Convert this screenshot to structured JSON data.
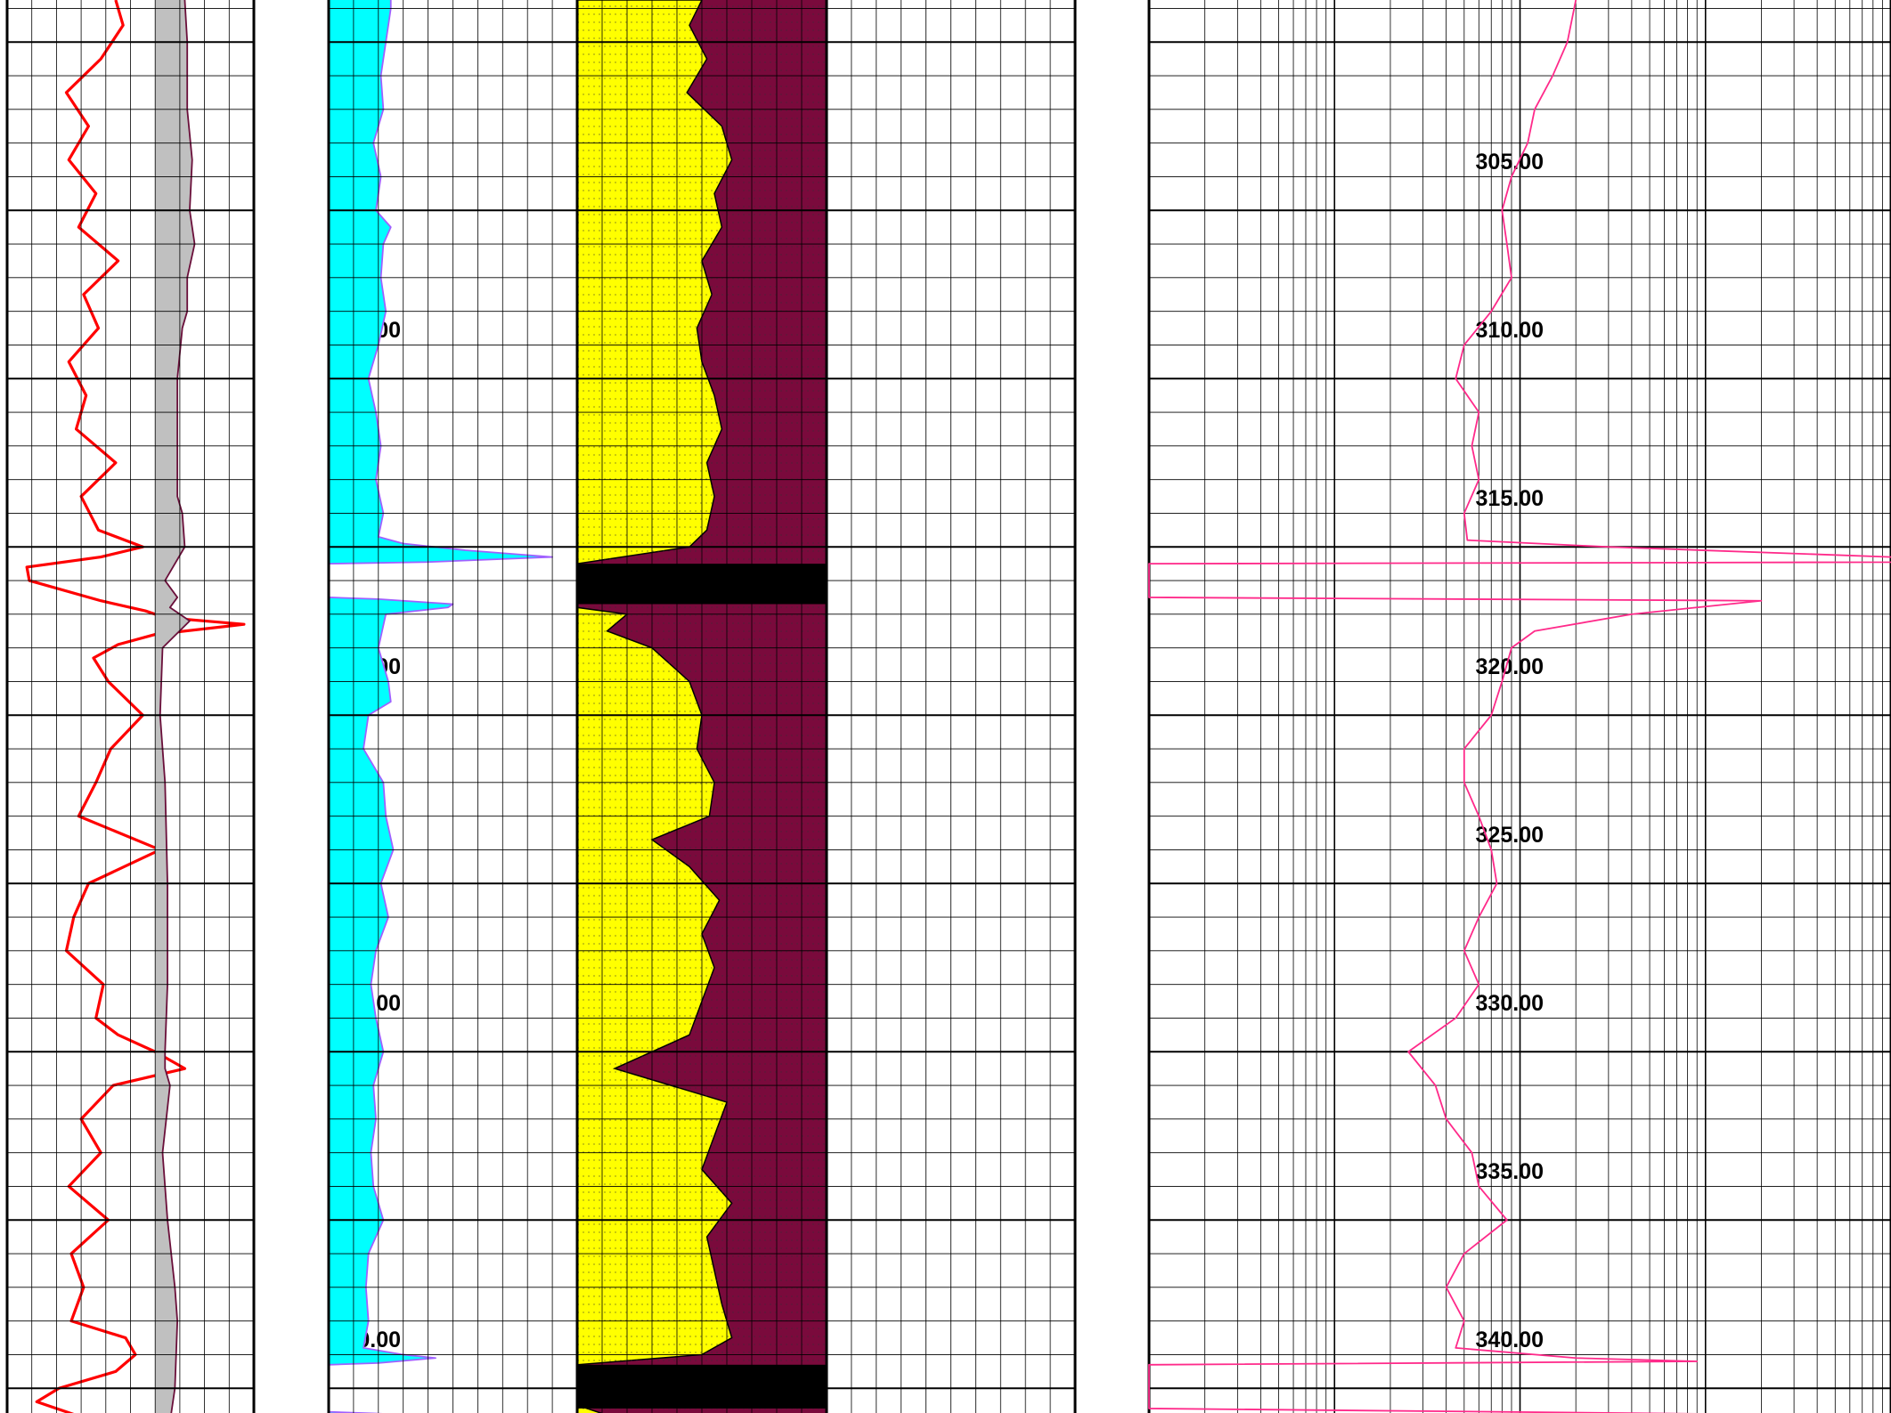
{
  "chart_data": {
    "type": "line",
    "title": "",
    "orientation": "vertical depth log",
    "depth_axis": {
      "range": [
        298.75,
        342.5
      ],
      "tick_labels": [
        "305.00",
        "310.00",
        "315.00",
        "320.00",
        "325.00",
        "330.00",
        "335.00",
        "340.00"
      ],
      "tick_values": [
        305,
        310,
        315,
        320,
        325,
        330,
        335,
        340
      ]
    },
    "tracks": [
      {
        "name": "track-1",
        "x_range": [
          0,
          10
        ],
        "grid": "linear",
        "series": [
          {
            "color": "#ff0000",
            "depth": [
              298.75,
              299.5,
              300.5,
              301.5,
              302.5,
              303.5,
              304.5,
              305.5,
              306.5,
              307.5,
              308.5,
              309.5,
              310.5,
              311.5,
              312.5,
              313.5,
              314.5,
              315.0,
              315.3,
              315.6,
              316.0,
              316.6,
              316.9,
              317.1,
              317.3,
              317.6,
              317.9,
              318.3,
              319.0,
              320.0,
              321.0,
              322.0,
              323.0,
              324.0,
              325.0,
              326.0,
              327.0,
              328.0,
              329.0,
              329.5,
              330.0,
              330.5,
              331.0,
              332.0,
              333.0,
              334.0,
              335.0,
              336.0,
              337.0,
              338.0,
              338.5,
              339.0,
              339.5,
              340.0,
              340.4,
              340.8,
              341.3,
              341.8,
              342.5
            ],
            "value": [
              4.4,
              4.7,
              3.8,
              2.4,
              3.3,
              2.5,
              3.6,
              2.9,
              4.5,
              3.1,
              3.7,
              2.5,
              3.2,
              2.8,
              4.4,
              3.0,
              3.7,
              5.5,
              3.8,
              0.8,
              0.9,
              3.8,
              5.6,
              6.4,
              9.6,
              6.0,
              4.5,
              3.5,
              4.1,
              5.5,
              4.2,
              3.6,
              2.9,
              6.2,
              3.3,
              2.7,
              2.4,
              3.9,
              3.6,
              4.5,
              6.0,
              7.2,
              4.3,
              3.0,
              3.8,
              2.5,
              4.1,
              2.6,
              3.1,
              2.6,
              4.8,
              5.2,
              4.4,
              2.1,
              1.2,
              2.8,
              4.8,
              5.3,
              4.2
            ]
          },
          {
            "color": "#6a0f3a",
            "fill": "#c0c0c0",
            "baseline": 6.0,
            "depth": [
              298.75,
              300,
              302,
              303.5,
              305,
              306,
              307,
              308,
              308.5,
              310,
              312,
              313.5,
              314,
              315,
              316,
              316.5,
              316.8,
              317.2,
              318,
              320,
              322,
              325,
              328,
              330,
              330.5,
              331,
              333,
              335,
              337,
              338,
              340,
              341,
              342.5
            ],
            "value": [
              7.2,
              7.3,
              7.3,
              7.5,
              7.4,
              7.6,
              7.3,
              7.3,
              7.1,
              6.9,
              6.9,
              6.9,
              7.1,
              7.2,
              6.4,
              6.9,
              6.6,
              7.4,
              6.3,
              6.2,
              6.4,
              6.5,
              6.5,
              6.4,
              6.4,
              6.6,
              6.3,
              6.5,
              6.8,
              6.9,
              6.8,
              6.6,
              6.6
            ]
          }
        ]
      },
      {
        "name": "track-2",
        "x_range": [
          0,
          10
        ],
        "grid": "linear",
        "series": [
          {
            "color": "#a060ff",
            "fill": "#00ffff",
            "baseline": 0,
            "depth": [
              298.75,
              299,
              300,
              301,
              302,
              303,
              304,
              305,
              305.5,
              306,
              307,
              308,
              309,
              310,
              311,
              312,
              313,
              314,
              314.7,
              314.9,
              315.1,
              315.3,
              315.45,
              315.5,
              316.5,
              316.55,
              316.7,
              316.8,
              317,
              318,
              319,
              319.6,
              320,
              321,
              322,
              323,
              324,
              325,
              326,
              327,
              328,
              329,
              330,
              331,
              332,
              333,
              334,
              335,
              336,
              337,
              338,
              338.8,
              339.0,
              339.1,
              339.25,
              339.3,
              340.7,
              340.75,
              340.9,
              341.0,
              341.2,
              342.5
            ],
            "value": [
              2.5,
              2.5,
              2.3,
              2.1,
              2.2,
              1.8,
              2.1,
              1.9,
              2.5,
              2.2,
              2.1,
              2.3,
              2.0,
              1.6,
              1.9,
              2.1,
              1.9,
              2.2,
              2.0,
              3.0,
              5.5,
              9.0,
              4.0,
              0,
              0,
              2.0,
              5.0,
              4.8,
              2.3,
              2.0,
              2.4,
              2.5,
              1.6,
              1.4,
              2.2,
              2.3,
              2.6,
              2.1,
              2.4,
              1.9,
              1.7,
              1.9,
              2.2,
              1.8,
              1.9,
              1.7,
              1.8,
              2.2,
              1.6,
              1.5,
              1.6,
              1.4,
              3.0,
              4.3,
              2.0,
              0,
              0,
              2.0,
              5.0,
              8.1,
              2.2,
              1.3
            ]
          }
        ]
      },
      {
        "name": "track-3",
        "x_range": [
          0,
          1
        ],
        "grid": "linear",
        "series": [
          {
            "type": "area-split",
            "left_fill": "#ffff00",
            "right_fill": "#7a0a3c",
            "depth": [
              298.75,
              299.5,
              300.5,
              301.5,
              302.5,
              303.5,
              304.5,
              305.5,
              306.5,
              307.5,
              308.5,
              309.5,
              310.5,
              311.5,
              312.5,
              313.5,
              314.5,
              315.0,
              315.5,
              316.8,
              317.0,
              317.5,
              318.0,
              319.0,
              320.0,
              321.0,
              322.0,
              323.0,
              323.7,
              324.5,
              325.5,
              326.5,
              327.5,
              328.5,
              329.5,
              330.5,
              331.5,
              332.5,
              333.5,
              334.5,
              335.5,
              336.5,
              337.5,
              338.5,
              339.0,
              339.3,
              340.5,
              341.0,
              342.0,
              342.5
            ],
            "value": [
              0.5,
              0.45,
              0.52,
              0.44,
              0.58,
              0.62,
              0.55,
              0.58,
              0.5,
              0.54,
              0.48,
              0.5,
              0.55,
              0.58,
              0.52,
              0.55,
              0.52,
              0.45,
              0.0,
              0.0,
              0.2,
              0.12,
              0.3,
              0.45,
              0.5,
              0.48,
              0.55,
              0.53,
              0.3,
              0.45,
              0.57,
              0.5,
              0.55,
              0.5,
              0.45,
              0.15,
              0.6,
              0.55,
              0.5,
              0.62,
              0.52,
              0.55,
              0.58,
              0.62,
              0.5,
              0.0,
              0.0,
              0.2,
              0.4,
              0.35
            ]
          },
          {
            "type": "lithology-band",
            "fill": "#000000",
            "depth_ranges": [
              [
                315.5,
                316.7
              ],
              [
                339.3,
                340.6
              ]
            ]
          }
        ]
      },
      {
        "name": "track-4",
        "x_range": [
          0,
          10
        ],
        "grid": "linear",
        "series": []
      },
      {
        "name": "track-5",
        "x_range": [
          0.1,
          1000
        ],
        "grid": "logarithmic",
        "series": [
          {
            "color": "#ff2a8a",
            "depth": [
              298.75,
              300,
              301,
              302,
              303,
              304,
              305,
              306,
              307,
              308,
              309,
              310,
              311,
              312,
              313,
              314,
              314.8,
              315.0,
              315.3,
              315.45,
              315.5,
              316.5,
              316.6,
              317.0,
              317.5,
              318,
              319,
              320,
              321,
              322,
              323,
              324,
              325,
              326,
              327,
              328,
              329,
              330,
              331,
              332,
              333,
              334,
              335,
              336,
              337,
              338,
              338.8,
              339.1,
              339.2,
              339.3,
              340.6,
              340.8,
              341.2,
              342.5
            ],
            "value": [
              20,
              18,
              15,
              12,
              11,
              9,
              8,
              8.5,
              9,
              7,
              5,
              4.5,
              6,
              5.5,
              6,
              5,
              5.2,
              30,
              1000,
              2000,
              0.1,
              0.1,
              200,
              40,
              12,
              9,
              8,
              7,
              5,
              5,
              6,
              7,
              7.5,
              6,
              5,
              6,
              4.5,
              2.5,
              3.5,
              4,
              5.5,
              6,
              8.5,
              5,
              4,
              5,
              4.5,
              20,
              90,
              0.1,
              0.1,
              600,
              10,
              6
            ]
          }
        ]
      }
    ]
  }
}
